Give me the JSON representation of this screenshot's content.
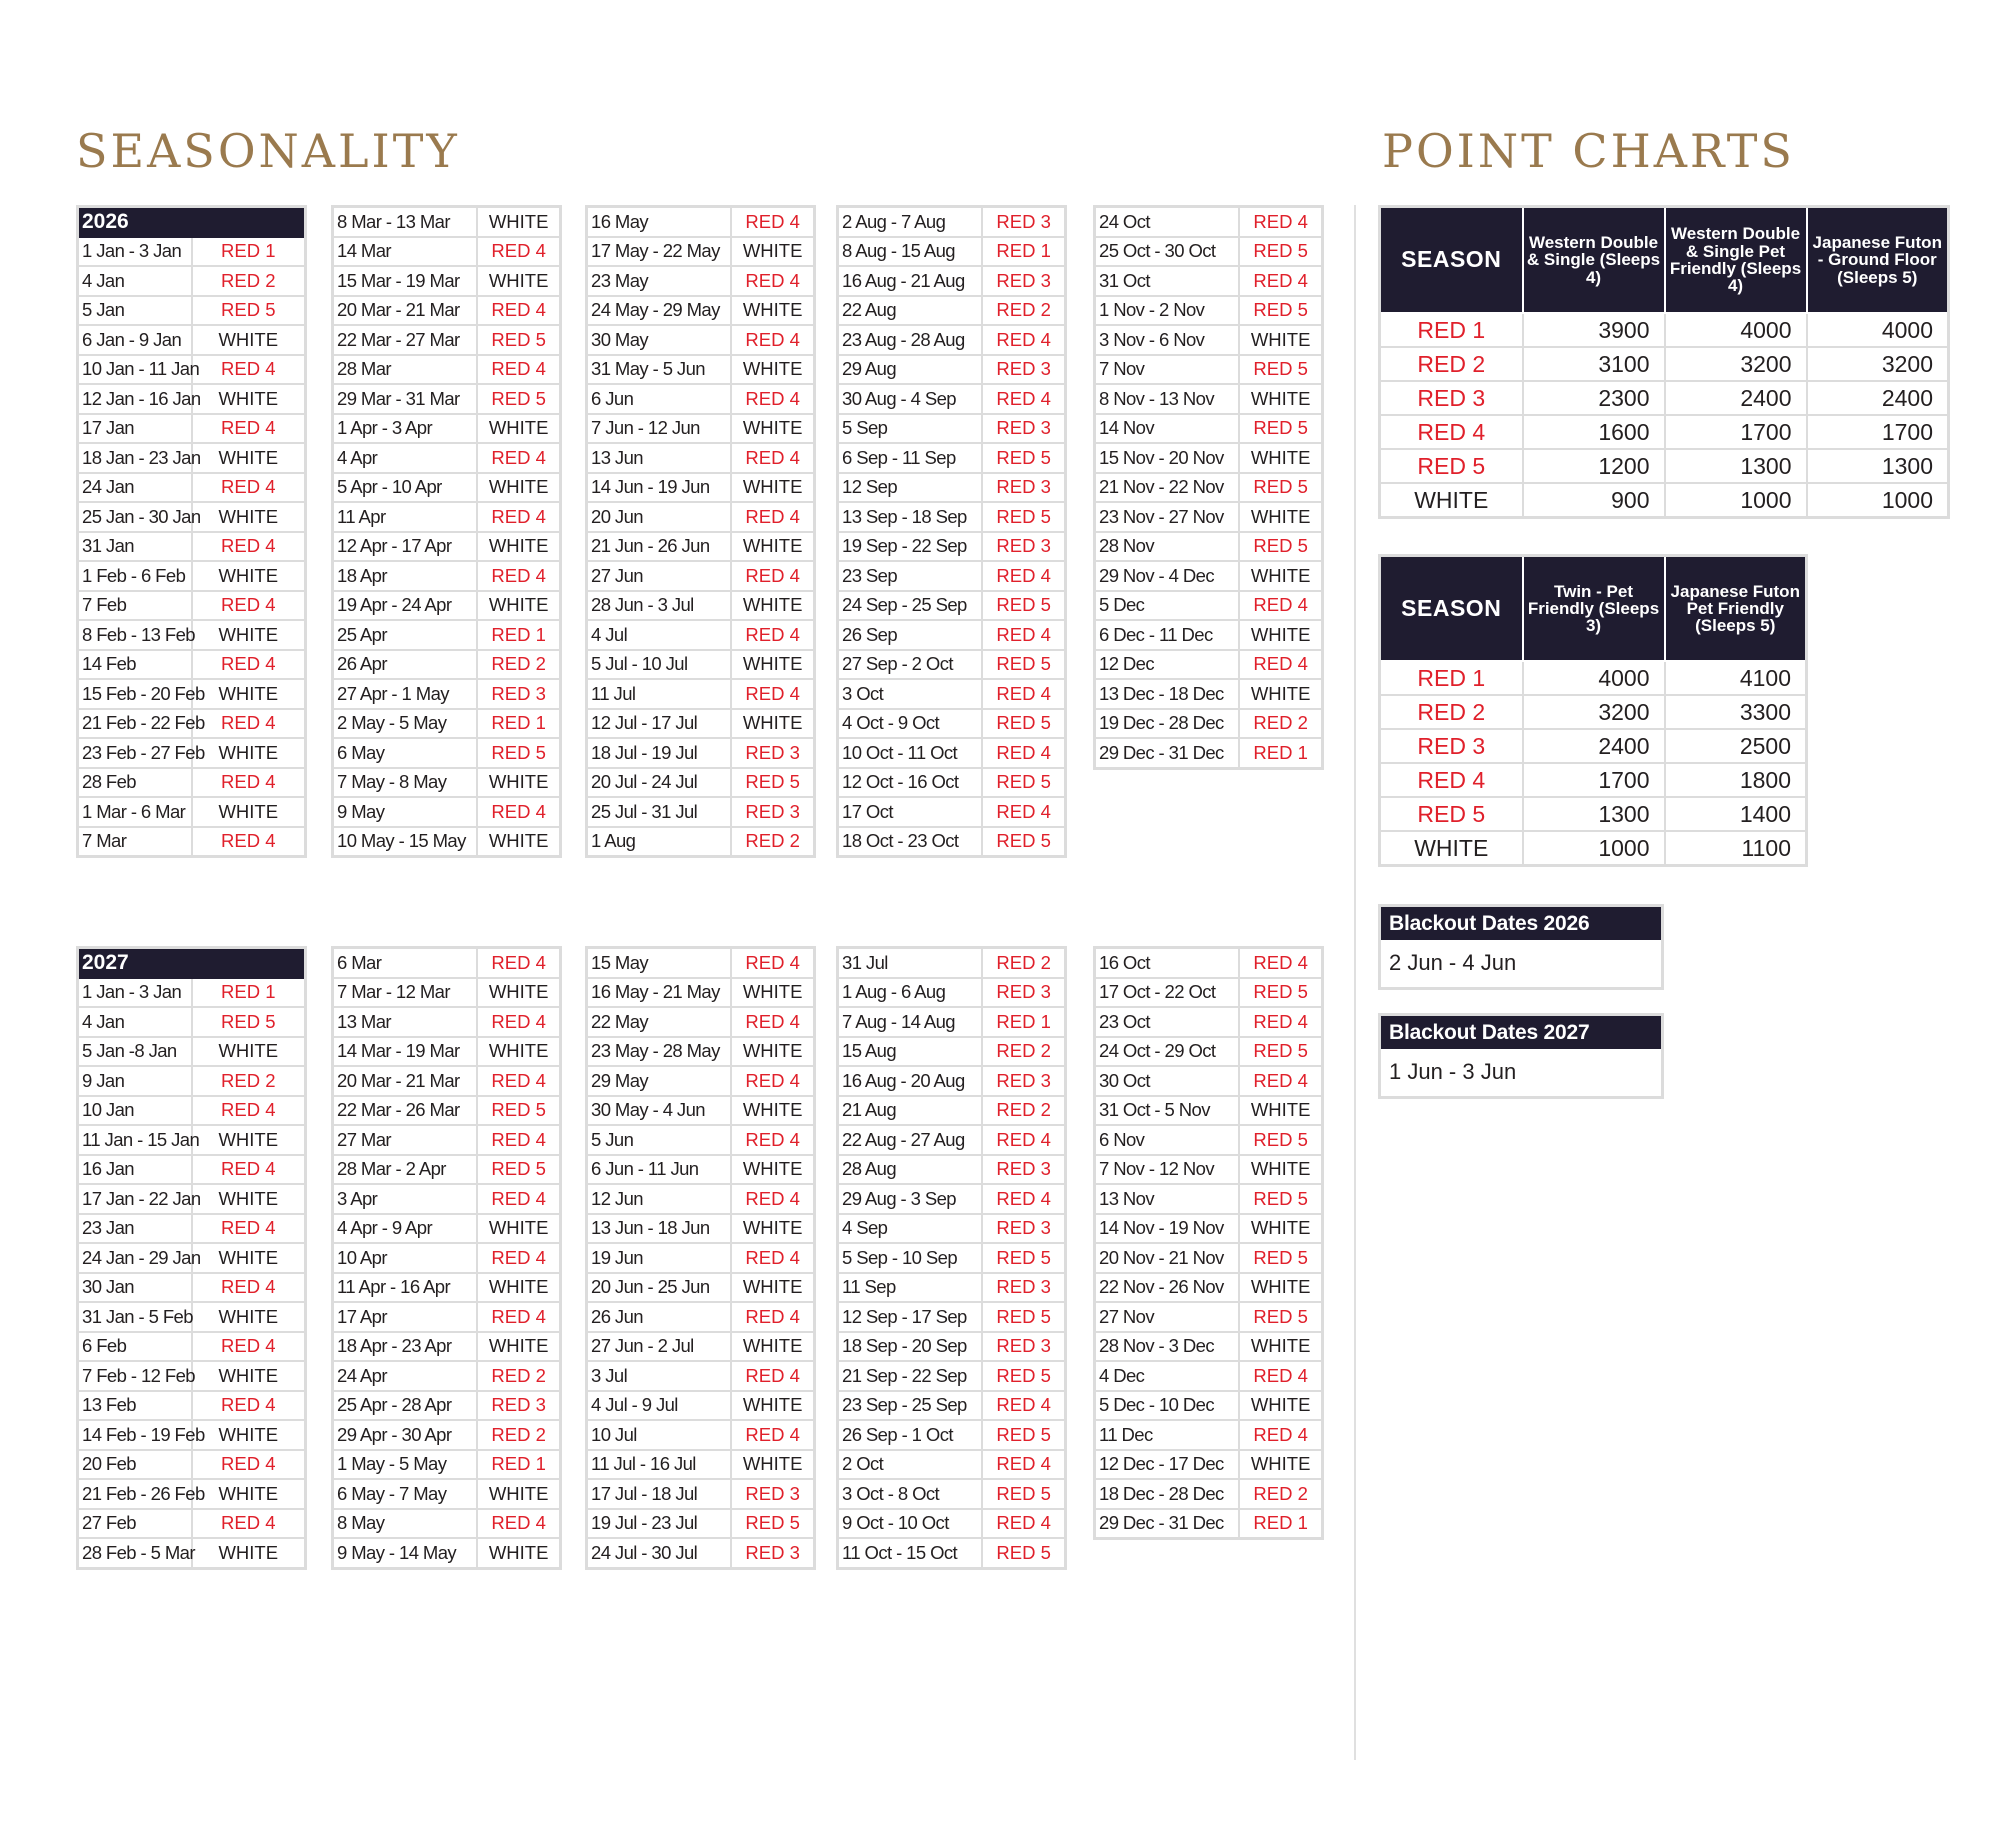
{
  "headings": {
    "seasonality": "SEASONALITY",
    "point_charts": "POINT CHARTS"
  },
  "seasonality": [
    {
      "year": "2026",
      "columns": [
        [
          [
            "1 Jan - 3 Jan",
            "RED 1"
          ],
          [
            "4 Jan",
            "RED 2"
          ],
          [
            "5 Jan",
            "RED 5"
          ],
          [
            "6 Jan - 9 Jan",
            "WHITE"
          ],
          [
            "10 Jan - 11 Jan",
            "RED 4"
          ],
          [
            "12 Jan - 16 Jan",
            "WHITE"
          ],
          [
            "17 Jan",
            "RED 4"
          ],
          [
            "18 Jan - 23 Jan",
            "WHITE"
          ],
          [
            "24 Jan",
            "RED 4"
          ],
          [
            "25 Jan - 30 Jan",
            "WHITE"
          ],
          [
            "31 Jan",
            "RED 4"
          ],
          [
            "1 Feb - 6 Feb",
            "WHITE"
          ],
          [
            "7 Feb",
            "RED 4"
          ],
          [
            "8 Feb - 13 Feb",
            "WHITE"
          ],
          [
            "14 Feb",
            "RED 4"
          ],
          [
            "15 Feb - 20 Feb",
            "WHITE"
          ],
          [
            "21 Feb - 22 Feb",
            "RED 4"
          ],
          [
            "23 Feb - 27 Feb",
            "WHITE"
          ],
          [
            "28 Feb",
            "RED 4"
          ],
          [
            "1 Mar - 6 Mar",
            "WHITE"
          ],
          [
            "7 Mar",
            "RED 4"
          ]
        ],
        [
          [
            "8 Mar - 13 Mar",
            "WHITE"
          ],
          [
            "14 Mar",
            "RED 4"
          ],
          [
            "15 Mar - 19 Mar",
            "WHITE"
          ],
          [
            "20 Mar - 21 Mar",
            "RED 4"
          ],
          [
            "22 Mar - 27 Mar",
            "RED 5"
          ],
          [
            "28 Mar",
            "RED 4"
          ],
          [
            "29 Mar - 31 Mar",
            "RED 5"
          ],
          [
            "1 Apr - 3 Apr",
            "WHITE"
          ],
          [
            "4 Apr",
            "RED 4"
          ],
          [
            "5 Apr - 10 Apr",
            "WHITE"
          ],
          [
            "11 Apr",
            "RED 4"
          ],
          [
            "12 Apr - 17 Apr",
            "WHITE"
          ],
          [
            "18 Apr",
            "RED 4"
          ],
          [
            "19 Apr - 24 Apr",
            "WHITE"
          ],
          [
            "25 Apr",
            "RED 1"
          ],
          [
            "26 Apr",
            "RED 2"
          ],
          [
            "27 Apr - 1 May",
            "RED 3"
          ],
          [
            "2 May - 5 May",
            "RED 1"
          ],
          [
            "6 May",
            "RED 5"
          ],
          [
            "7 May - 8 May",
            "WHITE"
          ],
          [
            "9 May",
            "RED 4"
          ],
          [
            "10 May - 15 May",
            "WHITE"
          ]
        ],
        [
          [
            "16 May",
            "RED 4"
          ],
          [
            "17 May - 22 May",
            "WHITE"
          ],
          [
            "23 May",
            "RED 4"
          ],
          [
            "24 May - 29 May",
            "WHITE"
          ],
          [
            "30 May",
            "RED 4"
          ],
          [
            "31 May - 5 Jun",
            "WHITE"
          ],
          [
            "6 Jun",
            "RED 4"
          ],
          [
            "7 Jun - 12 Jun",
            "WHITE"
          ],
          [
            "13 Jun",
            "RED 4"
          ],
          [
            "14 Jun - 19 Jun",
            "WHITE"
          ],
          [
            "20 Jun",
            "RED 4"
          ],
          [
            "21 Jun - 26 Jun",
            "WHITE"
          ],
          [
            "27 Jun",
            "RED 4"
          ],
          [
            "28 Jun - 3 Jul",
            "WHITE"
          ],
          [
            "4 Jul",
            "RED 4"
          ],
          [
            "5 Jul - 10 Jul",
            "WHITE"
          ],
          [
            "11 Jul",
            "RED 4"
          ],
          [
            "12 Jul - 17 Jul",
            "WHITE"
          ],
          [
            "18 Jul - 19 Jul",
            "RED 3"
          ],
          [
            "20 Jul - 24 Jul",
            "RED 5"
          ],
          [
            "25 Jul - 31 Jul",
            "RED 3"
          ],
          [
            "1 Aug",
            "RED 2"
          ]
        ],
        [
          [
            "2 Aug - 7 Aug",
            "RED 3"
          ],
          [
            "8 Aug - 15 Aug",
            "RED 1"
          ],
          [
            "16 Aug - 21 Aug",
            "RED 3"
          ],
          [
            "22 Aug",
            "RED 2"
          ],
          [
            "23 Aug - 28 Aug",
            "RED 4"
          ],
          [
            "29 Aug",
            "RED 3"
          ],
          [
            "30 Aug - 4 Sep",
            "RED 4"
          ],
          [
            "5 Sep",
            "RED 3"
          ],
          [
            "6 Sep - 11 Sep",
            "RED 5"
          ],
          [
            "12 Sep",
            "RED 3"
          ],
          [
            "13 Sep - 18 Sep",
            "RED 5"
          ],
          [
            "19 Sep - 22 Sep",
            "RED 3"
          ],
          [
            "23 Sep",
            "RED 4"
          ],
          [
            "24 Sep - 25 Sep",
            "RED 5"
          ],
          [
            "26 Sep",
            "RED 4"
          ],
          [
            "27 Sep - 2 Oct",
            "RED 5"
          ],
          [
            "3 Oct",
            "RED 4"
          ],
          [
            "4 Oct - 9 Oct",
            "RED 5"
          ],
          [
            "10 Oct - 11 Oct",
            "RED 4"
          ],
          [
            "12 Oct - 16 Oct",
            "RED 5"
          ],
          [
            "17 Oct",
            "RED 4"
          ],
          [
            "18 Oct - 23 Oct",
            "RED 5"
          ]
        ],
        [
          [
            "24 Oct",
            "RED 4"
          ],
          [
            "25 Oct - 30 Oct",
            "RED 5"
          ],
          [
            "31 Oct",
            "RED 4"
          ],
          [
            "1 Nov - 2 Nov",
            "RED 5"
          ],
          [
            "3 Nov - 6 Nov",
            "WHITE"
          ],
          [
            "7 Nov",
            "RED 5"
          ],
          [
            "8 Nov - 13 Nov",
            "WHITE"
          ],
          [
            "14 Nov",
            "RED 5"
          ],
          [
            "15 Nov - 20 Nov",
            "WHITE"
          ],
          [
            "21 Nov - 22 Nov",
            "RED 5"
          ],
          [
            "23 Nov - 27 Nov",
            "WHITE"
          ],
          [
            "28 Nov",
            "RED 5"
          ],
          [
            "29 Nov - 4 Dec",
            "WHITE"
          ],
          [
            "5 Dec",
            "RED 4"
          ],
          [
            "6 Dec - 11 Dec",
            "WHITE"
          ],
          [
            "12 Dec",
            "RED 4"
          ],
          [
            "13 Dec - 18 Dec",
            "WHITE"
          ],
          [
            "19 Dec - 28 Dec",
            "RED 2"
          ],
          [
            "29 Dec - 31 Dec",
            "RED 1"
          ]
        ]
      ]
    },
    {
      "year": "2027",
      "columns": [
        [
          [
            "1 Jan - 3 Jan",
            "RED 1"
          ],
          [
            "4 Jan",
            "RED 5"
          ],
          [
            "5 Jan -8 Jan",
            "WHITE"
          ],
          [
            "9 Jan",
            "RED 2"
          ],
          [
            "10 Jan",
            "RED 4"
          ],
          [
            "11 Jan - 15 Jan",
            "WHITE"
          ],
          [
            "16 Jan",
            "RED 4"
          ],
          [
            "17 Jan - 22 Jan",
            "WHITE"
          ],
          [
            "23 Jan",
            "RED 4"
          ],
          [
            "24 Jan - 29 Jan",
            "WHITE"
          ],
          [
            "30 Jan",
            "RED 4"
          ],
          [
            "31 Jan - 5 Feb",
            "WHITE"
          ],
          [
            "6 Feb",
            "RED 4"
          ],
          [
            "7 Feb - 12 Feb",
            "WHITE"
          ],
          [
            "13 Feb",
            "RED 4"
          ],
          [
            "14 Feb - 19 Feb",
            "WHITE"
          ],
          [
            "20 Feb",
            "RED 4"
          ],
          [
            "21 Feb - 26 Feb",
            "WHITE"
          ],
          [
            "27 Feb",
            "RED 4"
          ],
          [
            "28 Feb - 5 Mar",
            "WHITE"
          ]
        ],
        [
          [
            "6 Mar",
            "RED 4"
          ],
          [
            "7 Mar - 12 Mar",
            "WHITE"
          ],
          [
            "13 Mar",
            "RED 4"
          ],
          [
            "14 Mar - 19 Mar",
            "WHITE"
          ],
          [
            "20 Mar - 21 Mar",
            "RED 4"
          ],
          [
            "22 Mar - 26 Mar",
            "RED 5"
          ],
          [
            "27 Mar",
            "RED 4"
          ],
          [
            "28 Mar - 2 Apr",
            "RED 5"
          ],
          [
            "3 Apr",
            "RED 4"
          ],
          [
            "4 Apr - 9 Apr",
            "WHITE"
          ],
          [
            "10 Apr",
            "RED 4"
          ],
          [
            "11 Apr - 16 Apr",
            "WHITE"
          ],
          [
            "17 Apr",
            "RED 4"
          ],
          [
            "18 Apr - 23 Apr",
            "WHITE"
          ],
          [
            "24 Apr",
            "RED 2"
          ],
          [
            "25 Apr - 28 Apr",
            "RED 3"
          ],
          [
            "29 Apr - 30 Apr",
            "RED 2"
          ],
          [
            "1 May - 5 May",
            "RED 1"
          ],
          [
            "6 May - 7 May",
            "WHITE"
          ],
          [
            "8 May",
            "RED 4"
          ],
          [
            "9 May - 14 May",
            "WHITE"
          ]
        ],
        [
          [
            "15 May",
            "RED 4"
          ],
          [
            "16 May - 21 May",
            "WHITE"
          ],
          [
            "22 May",
            "RED 4"
          ],
          [
            "23 May - 28 May",
            "WHITE"
          ],
          [
            "29 May",
            "RED 4"
          ],
          [
            "30 May - 4 Jun",
            "WHITE"
          ],
          [
            "5 Jun",
            "RED 4"
          ],
          [
            "6 Jun - 11 Jun",
            "WHITE"
          ],
          [
            "12 Jun",
            "RED 4"
          ],
          [
            "13 Jun - 18 Jun",
            "WHITE"
          ],
          [
            "19 Jun",
            "RED 4"
          ],
          [
            "20 Jun - 25 Jun",
            "WHITE"
          ],
          [
            "26 Jun",
            "RED 4"
          ],
          [
            "27 Jun - 2 Jul",
            "WHITE"
          ],
          [
            "3 Jul",
            "RED 4"
          ],
          [
            "4 Jul - 9 Jul",
            "WHITE"
          ],
          [
            "10 Jul",
            "RED 4"
          ],
          [
            "11 Jul - 16 Jul",
            "WHITE"
          ],
          [
            "17 Jul - 18 Jul",
            "RED 3"
          ],
          [
            "19 Jul - 23 Jul",
            "RED 5"
          ],
          [
            "24 Jul - 30 Jul",
            "RED 3"
          ]
        ],
        [
          [
            "31 Jul",
            "RED 2"
          ],
          [
            "1 Aug - 6 Aug",
            "RED 3"
          ],
          [
            "7 Aug - 14 Aug",
            "RED 1"
          ],
          [
            "15 Aug",
            "RED 2"
          ],
          [
            "16 Aug - 20 Aug",
            "RED 3"
          ],
          [
            "21 Aug",
            "RED 2"
          ],
          [
            "22 Aug - 27 Aug",
            "RED 4"
          ],
          [
            "28 Aug",
            "RED 3"
          ],
          [
            "29 Aug - 3 Sep",
            "RED 4"
          ],
          [
            "4 Sep",
            "RED 3"
          ],
          [
            "5 Sep - 10 Sep",
            "RED 5"
          ],
          [
            "11 Sep",
            "RED 3"
          ],
          [
            "12 Sep - 17 Sep",
            "RED 5"
          ],
          [
            "18 Sep - 20 Sep",
            "RED 3"
          ],
          [
            "21 Sep - 22 Sep",
            "RED 5"
          ],
          [
            "23 Sep - 25 Sep",
            "RED 4"
          ],
          [
            "26 Sep - 1 Oct",
            "RED 5"
          ],
          [
            "2 Oct",
            "RED 4"
          ],
          [
            "3 Oct - 8 Oct",
            "RED 5"
          ],
          [
            "9 Oct - 10 Oct",
            "RED 4"
          ],
          [
            "11 Oct - 15 Oct",
            "RED 5"
          ]
        ],
        [
          [
            "16 Oct",
            "RED 4"
          ],
          [
            "17 Oct - 22 Oct",
            "RED 5"
          ],
          [
            "23 Oct",
            "RED 4"
          ],
          [
            "24 Oct - 29 Oct",
            "RED 5"
          ],
          [
            "30 Oct",
            "RED 4"
          ],
          [
            "31 Oct - 5 Nov",
            "WHITE"
          ],
          [
            "6 Nov",
            "RED 5"
          ],
          [
            "7 Nov - 12 Nov",
            "WHITE"
          ],
          [
            "13 Nov",
            "RED 5"
          ],
          [
            "14 Nov - 19 Nov",
            "WHITE"
          ],
          [
            "20 Nov - 21 Nov",
            "RED 5"
          ],
          [
            "22 Nov - 26 Nov",
            "WHITE"
          ],
          [
            "27 Nov",
            "RED 5"
          ],
          [
            "28 Nov - 3 Dec",
            "WHITE"
          ],
          [
            "4 Dec",
            "RED 4"
          ],
          [
            "5 Dec - 10 Dec",
            "WHITE"
          ],
          [
            "11 Dec",
            "RED 4"
          ],
          [
            "12 Dec - 17 Dec",
            "WHITE"
          ],
          [
            "18 Dec - 28 Dec",
            "RED 2"
          ],
          [
            "29 Dec - 31 Dec",
            "RED 1"
          ]
        ]
      ]
    }
  ],
  "point_charts": [
    {
      "headers": [
        "SEASON",
        "Western Double & Single (Sleeps 4)",
        "Western Double & Single Pet Friendly (Sleeps 4)",
        "Japanese Futon - Ground Floor (Sleeps 5)"
      ],
      "rows": [
        [
          "RED 1",
          "3900",
          "4000",
          "4000"
        ],
        [
          "RED 2",
          "3100",
          "3200",
          "3200"
        ],
        [
          "RED 3",
          "2300",
          "2400",
          "2400"
        ],
        [
          "RED 4",
          "1600",
          "1700",
          "1700"
        ],
        [
          "RED 5",
          "1200",
          "1300",
          "1300"
        ],
        [
          "WHITE",
          "900",
          "1000",
          "1000"
        ]
      ]
    },
    {
      "headers": [
        "SEASON",
        "Twin - Pet Friendly (Sleeps 3)",
        "Japanese Futon Pet Friendly (Sleeps 5)"
      ],
      "rows": [
        [
          "RED 1",
          "4000",
          "4100"
        ],
        [
          "RED 2",
          "3200",
          "3300"
        ],
        [
          "RED 3",
          "2400",
          "2500"
        ],
        [
          "RED 4",
          "1700",
          "1800"
        ],
        [
          "RED 5",
          "1300",
          "1400"
        ],
        [
          "WHITE",
          "1000",
          "1100"
        ]
      ]
    }
  ],
  "blackout": [
    {
      "title": "Blackout Dates 2026",
      "dates": "2 Jun - 4 Jun"
    },
    {
      "title": "Blackout Dates 2027",
      "dates": "1 Jun - 3 Jun"
    }
  ],
  "colors": {
    "navy_header": "#1f1c30",
    "red_season": "#e0202b",
    "gold_heading": "#9a7a4e",
    "border": "#dcdcdc"
  }
}
